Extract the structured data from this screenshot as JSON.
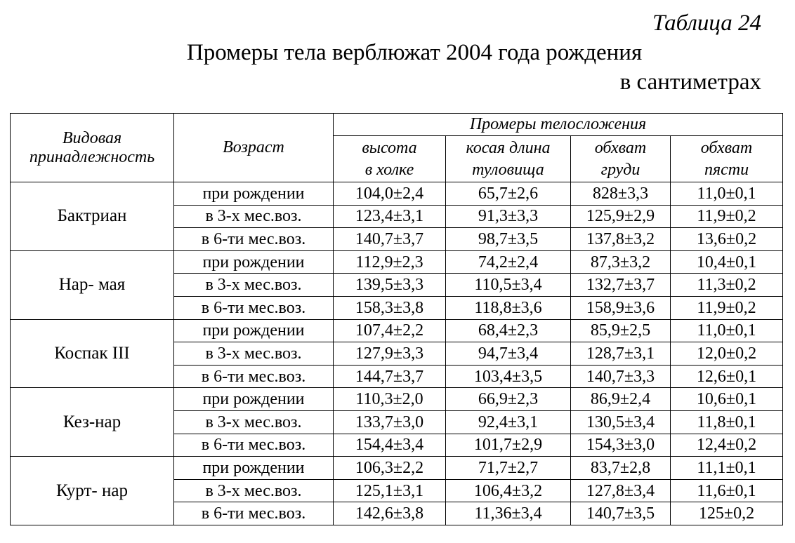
{
  "caption": {
    "table_label": "Таблица 24",
    "title": "Промеры тела верблюжат 2004 года рождения",
    "units": "в сантиметрах"
  },
  "header": {
    "species": "Видовая принадлежность",
    "species_line1": "Видовая",
    "species_line2": "принадлежность",
    "age": "Возраст",
    "measurements_group": "Промеры телосложения",
    "columns": [
      {
        "line1": "высота",
        "line2": "в холке"
      },
      {
        "line1": "косая длина",
        "line2": "туловища"
      },
      {
        "line1": "обхват",
        "line2": "груди"
      },
      {
        "line1": "обхват",
        "line2": "пясти"
      }
    ]
  },
  "groups": [
    {
      "species": "Бактриан",
      "rows": [
        {
          "age": "при рождении",
          "values": [
            "104,0±2,4",
            "65,7±2,6",
            "828±3,3",
            "11,0±0,1"
          ]
        },
        {
          "age": "в 3-х мес.воз.",
          "values": [
            "123,4±3,1",
            "91,3±3,3",
            "125,9±2,9",
            "11,9±0,2"
          ]
        },
        {
          "age": "в 6-ти мес.воз.",
          "values": [
            "140,7±3,7",
            "98,7±3,5",
            "137,8±3,2",
            "13,6±0,2"
          ]
        }
      ]
    },
    {
      "species": "Нар- мая",
      "rows": [
        {
          "age": "при рождении",
          "values": [
            "112,9±2,3",
            "74,2±2,4",
            "87,3±3,2",
            "10,4±0,1"
          ]
        },
        {
          "age": "в 3-х мес.воз.",
          "values": [
            "139,5±3,3",
            "110,5±3,4",
            "132,7±3,7",
            "11,3±0,2"
          ]
        },
        {
          "age": "в 6-ти мес.воз.",
          "values": [
            "158,3±3,8",
            "118,8±3,6",
            "158,9±3,6",
            "11,9±0,2"
          ]
        }
      ]
    },
    {
      "species": "Коспак III",
      "rows": [
        {
          "age": "при рождении",
          "values": [
            "107,4±2,2",
            "68,4±2,3",
            "85,9±2,5",
            "11,0±0,1"
          ]
        },
        {
          "age": "в 3-х мес.воз.",
          "values": [
            "127,9±3,3",
            "94,7±3,4",
            "128,7±3,1",
            "12,0±0,2"
          ]
        },
        {
          "age": "в 6-ти мес.воз.",
          "values": [
            "144,7±3,7",
            "103,4±3,5",
            "140,7±3,3",
            "12,6±0,1"
          ]
        }
      ]
    },
    {
      "species": "Кез-нар",
      "rows": [
        {
          "age": "при рождении",
          "values": [
            "110,3±2,0",
            "66,9±2,3",
            "86,9±2,4",
            "10,6±0,1"
          ]
        },
        {
          "age": "в 3-х мес.воз.",
          "values": [
            "133,7±3,0",
            "92,4±3,1",
            "130,5±3,4",
            "11,8±0,1"
          ]
        },
        {
          "age": "в 6-ти мес.воз.",
          "values": [
            "154,4±3,4",
            "101,7±2,9",
            "154,3±3,0",
            "12,4±0,2"
          ]
        }
      ]
    },
    {
      "species": "Курт- нар",
      "rows": [
        {
          "age": "при рождении",
          "values": [
            "106,3±2,2",
            "71,7±2,7",
            "83,7±2,8",
            "11,1±0,1"
          ]
        },
        {
          "age": "в 3-х мес.воз.",
          "values": [
            "125,1±3,1",
            "106,4±3,2",
            "127,8±3,4",
            "11,6±0,1"
          ]
        },
        {
          "age": "в 6-ти мес.воз.",
          "values": [
            "142,6±3,8",
            "11,36±3,4",
            "140,7±3,5",
            "125±0,2"
          ]
        }
      ]
    }
  ]
}
